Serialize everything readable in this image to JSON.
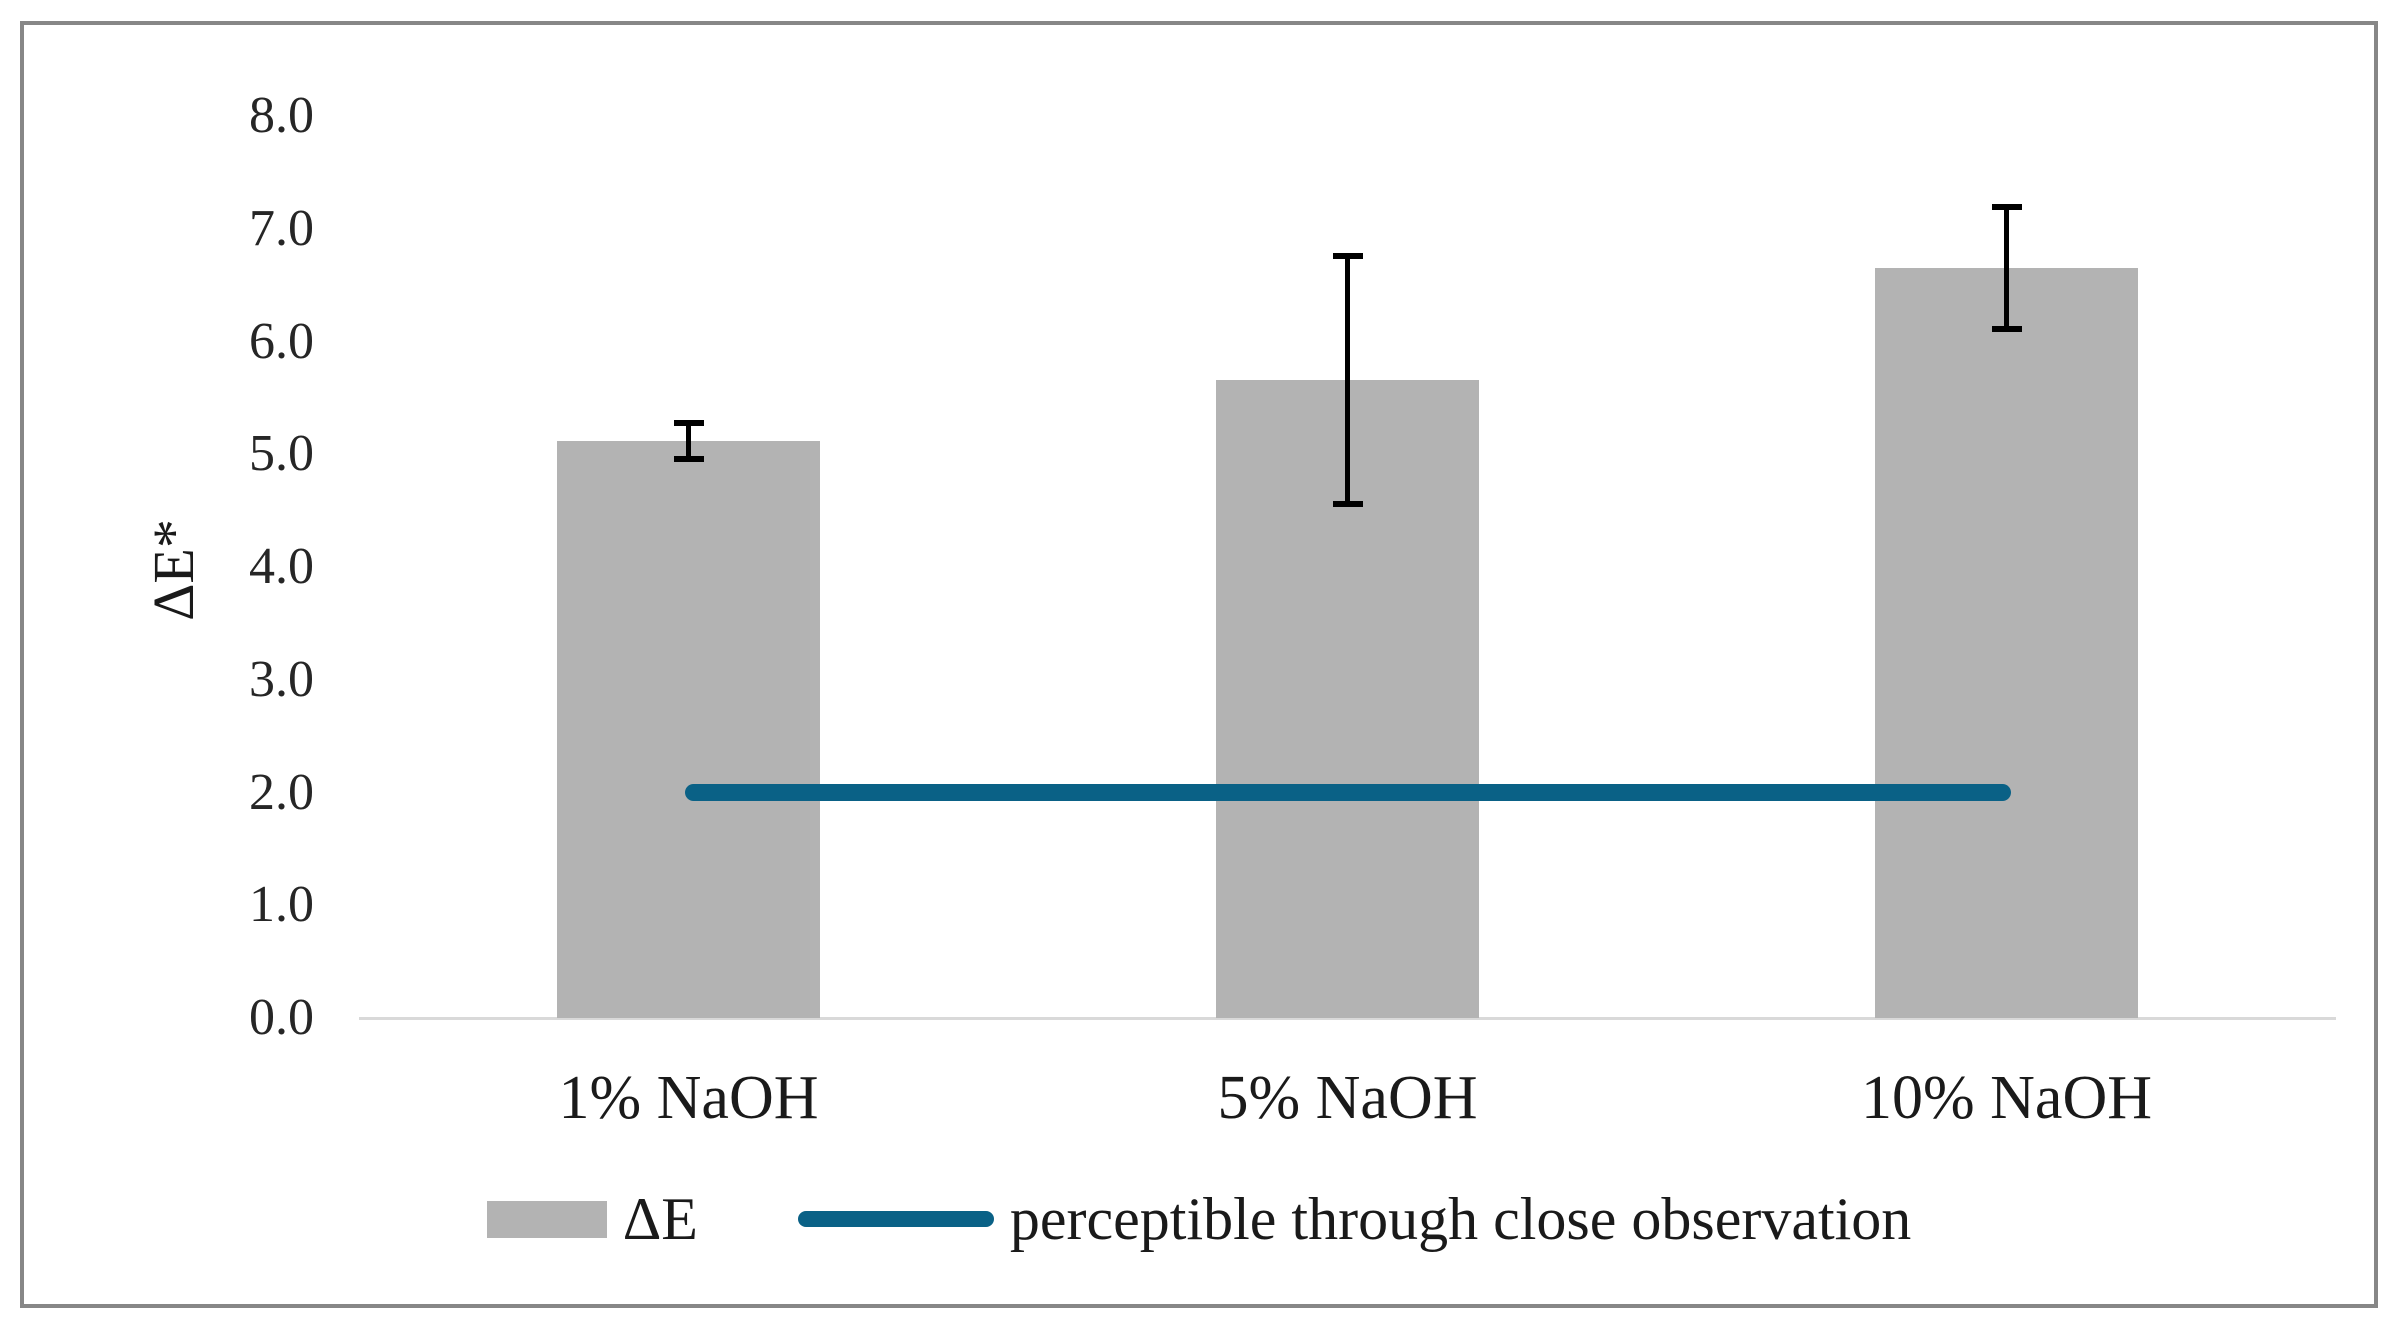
{
  "figure": {
    "background": "#ffffff",
    "border_color": "#878787"
  },
  "chart_data": {
    "type": "bar",
    "title": "",
    "xlabel": "",
    "ylabel": "ΔE*",
    "ylim": [
      0.0,
      8.0
    ],
    "ytick_step": 1.0,
    "ytick_labels": [
      "0.0",
      "1.0",
      "2.0",
      "3.0",
      "4.0",
      "5.0",
      "6.0",
      "7.0",
      "8.0"
    ],
    "grid": false,
    "legend_position": "bottom",
    "categories": [
      "1% NaOH",
      "5% NaOH",
      "10% NaOH"
    ],
    "series": [
      {
        "name": "ΔE",
        "type": "bar",
        "values": [
          5.12,
          5.66,
          6.65
        ],
        "errors": [
          0.16,
          1.1,
          0.54
        ],
        "color": "#b3b3b3"
      },
      {
        "name": "perceptible through close observation",
        "type": "line",
        "value": 2.0,
        "color": "#0a6186"
      }
    ],
    "error_bar_color": "#000000",
    "axis_line_color": "#d9d9d9"
  }
}
